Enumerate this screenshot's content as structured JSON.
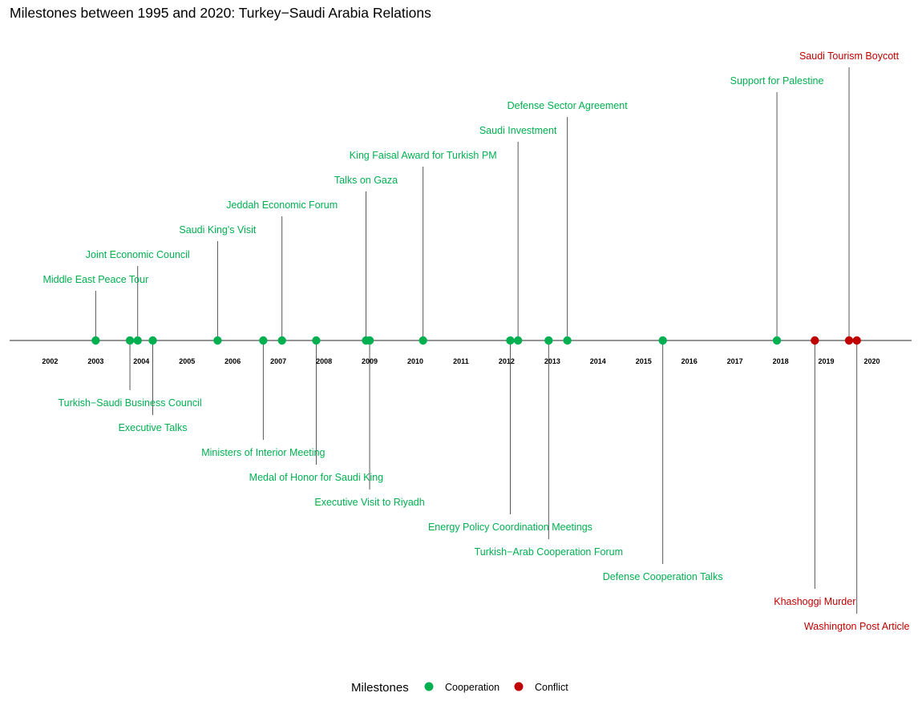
{
  "chart_data": {
    "type": "timeline",
    "title": "Milestones between 1995 and 2020: Turkey−Saudi Arabia Relations",
    "x_axis": {
      "range": [
        2001.1,
        2020.85
      ],
      "ticks": [
        2002,
        2003,
        2004,
        2005,
        2006,
        2007,
        2008,
        2009,
        2010,
        2011,
        2012,
        2013,
        2014,
        2015,
        2016,
        2017,
        2018,
        2019,
        2020
      ]
    },
    "colors": {
      "Cooperation": "#00b050",
      "Conflict": "#c00000"
    },
    "legend": {
      "title": "Milestones",
      "position": "bottom",
      "entries": [
        {
          "label": "Cooperation",
          "category": "Cooperation"
        },
        {
          "label": "Conflict",
          "category": "Conflict"
        }
      ]
    },
    "events": [
      {
        "label": "Middle East Peace Tour",
        "date": 2003.0,
        "category": "Cooperation",
        "direction": "up",
        "level": 1
      },
      {
        "label": "Turkish−Saudi Business Council",
        "date": 2003.75,
        "category": "Cooperation",
        "direction": "down",
        "level": 1
      },
      {
        "label": "Joint Economic Council",
        "date": 2003.92,
        "category": "Cooperation",
        "direction": "up",
        "level": 2
      },
      {
        "label": "Executive Talks",
        "date": 2004.25,
        "category": "Cooperation",
        "direction": "down",
        "level": 2
      },
      {
        "label": "Saudi King's Visit",
        "date": 2005.67,
        "category": "Cooperation",
        "direction": "up",
        "level": 3
      },
      {
        "label": "Ministers of Interior Meeting",
        "date": 2006.67,
        "category": "Cooperation",
        "direction": "down",
        "level": 3
      },
      {
        "label": "Jeddah Economic Forum",
        "date": 2007.08,
        "category": "Cooperation",
        "direction": "up",
        "level": 4
      },
      {
        "label": "Medal of Honor for Saudi King",
        "date": 2007.83,
        "category": "Cooperation",
        "direction": "down",
        "level": 4
      },
      {
        "label": "Talks on Gaza",
        "date": 2008.92,
        "category": "Cooperation",
        "direction": "up",
        "level": 5
      },
      {
        "label": "Executive Visit to Riyadh",
        "date": 2009.0,
        "category": "Cooperation",
        "direction": "down",
        "level": 5
      },
      {
        "label": "King Faisal Award for Turkish PM",
        "date": 2010.17,
        "category": "Cooperation",
        "direction": "up",
        "level": 6
      },
      {
        "label": "Energy Policy Coordination Meetings",
        "date": 2012.08,
        "category": "Cooperation",
        "direction": "down",
        "level": 6
      },
      {
        "label": "Saudi Investment",
        "date": 2012.25,
        "category": "Cooperation",
        "direction": "up",
        "level": 7
      },
      {
        "label": "Turkish−Arab Cooperation Forum",
        "date": 2012.92,
        "category": "Cooperation",
        "direction": "down",
        "level": 7
      },
      {
        "label": "Defense Sector Agreement",
        "date": 2013.33,
        "category": "Cooperation",
        "direction": "up",
        "level": 8
      },
      {
        "label": "Defense Cooperation Talks",
        "date": 2015.42,
        "category": "Cooperation",
        "direction": "down",
        "level": 8
      },
      {
        "label": "Support for Palestine",
        "date": 2017.92,
        "category": "Cooperation",
        "direction": "up",
        "level": 9
      },
      {
        "label": "Khashoggi Murder",
        "date": 2018.75,
        "category": "Conflict",
        "direction": "down",
        "level": 9
      },
      {
        "label": "Saudi Tourism Boycott",
        "date": 2019.5,
        "category": "Conflict",
        "direction": "up",
        "level": 10
      },
      {
        "label": "Washington Post Article",
        "date": 2019.67,
        "category": "Conflict",
        "direction": "down",
        "level": 10
      }
    ]
  }
}
